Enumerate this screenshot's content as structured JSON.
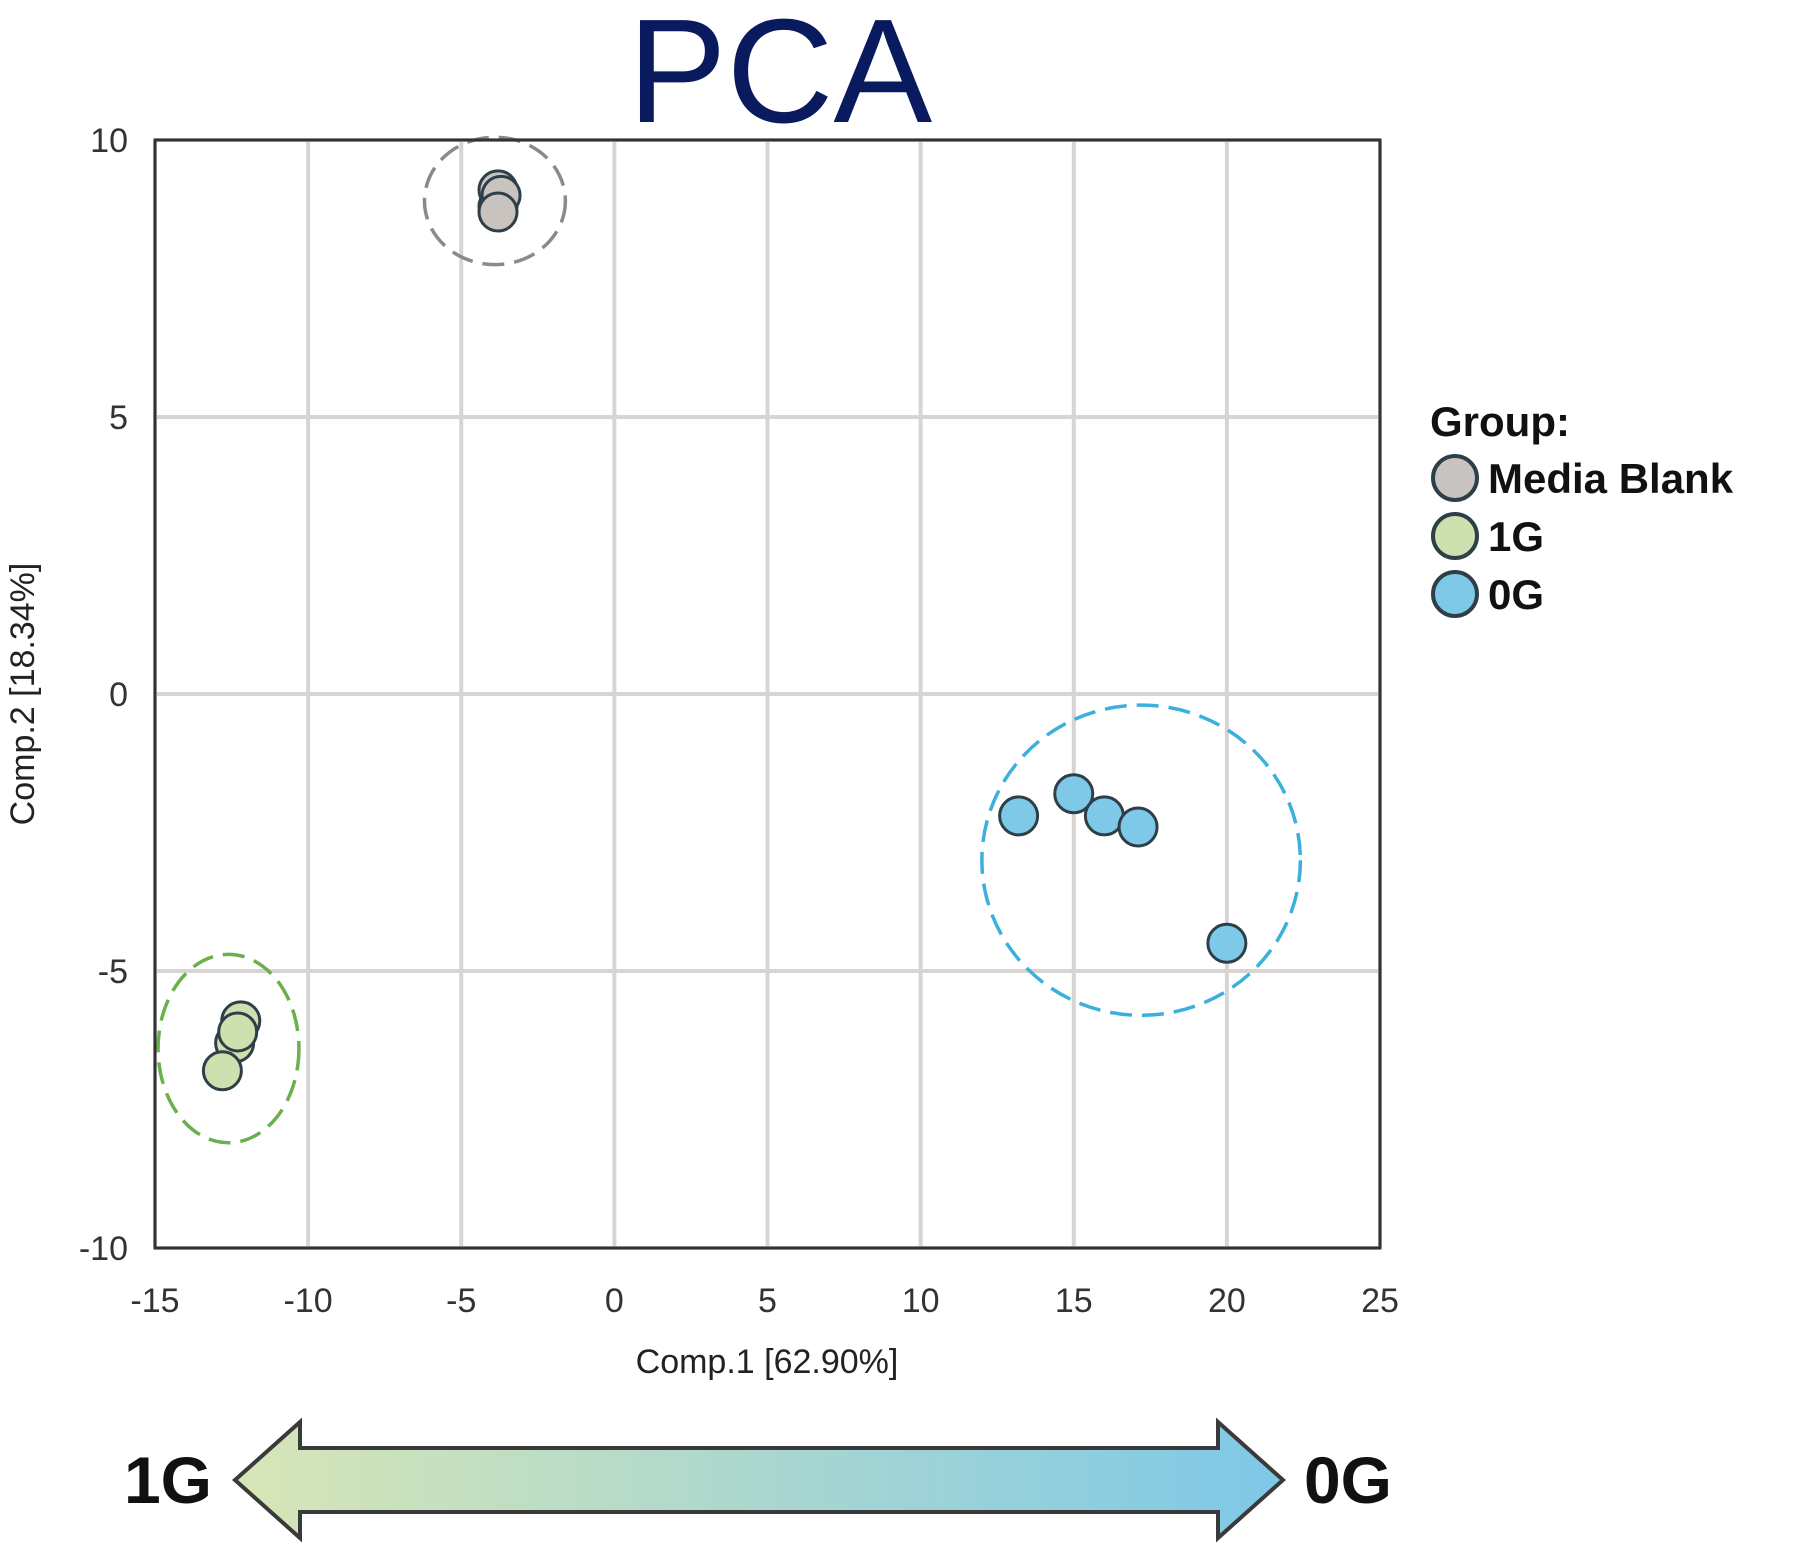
{
  "chart_data": {
    "type": "scatter",
    "title": "PCA",
    "xlabel": "Comp.1 [62.90%]",
    "ylabel": "Comp.2 [18.34%]",
    "xlim": [
      -15,
      25
    ],
    "ylim": [
      -10,
      10
    ],
    "xticks": [
      -15,
      -10,
      -5,
      0,
      5,
      10,
      15,
      20,
      25
    ],
    "yticks": [
      -10,
      -5,
      0,
      5,
      10
    ],
    "grid": true,
    "legend": {
      "title": "Group:",
      "placement": "right"
    },
    "series": [
      {
        "name": "Media Blank",
        "color": "#c9c3bf",
        "ellipse_color": "#8a8a8a",
        "points": [
          [
            -3.8,
            9.1
          ],
          [
            -3.8,
            8.8
          ],
          [
            -3.7,
            9.0
          ],
          [
            -3.8,
            8.7
          ]
        ],
        "ellipse": {
          "cx": -3.9,
          "cy": 8.9,
          "rx": 2.3,
          "ry": 1.15
        }
      },
      {
        "name": "1G",
        "color": "#cfe0b0",
        "ellipse_color": "#6ab04c",
        "points": [
          [
            -12.2,
            -5.9
          ],
          [
            -12.4,
            -6.3
          ],
          [
            -12.8,
            -6.8
          ],
          [
            -12.3,
            -6.1
          ]
        ],
        "ellipse": {
          "cx": -12.6,
          "cy": -6.4,
          "rx": 2.3,
          "ry": 1.7
        }
      },
      {
        "name": "0G",
        "color": "#7ec8e8",
        "ellipse_color": "#3bb0dc",
        "points": [
          [
            13.2,
            -2.2
          ],
          [
            15.0,
            -1.8
          ],
          [
            16.0,
            -2.2
          ],
          [
            17.1,
            -2.4
          ],
          [
            20.0,
            -4.5
          ]
        ],
        "ellipse": {
          "cx": 17.2,
          "cy": -3.0,
          "rx": 5.2,
          "ry": 2.8
        }
      }
    ]
  },
  "arrow": {
    "left_label": "1G",
    "right_label": "0G",
    "left_color": "#d8e6b6",
    "right_color": "#7ec8e8"
  }
}
